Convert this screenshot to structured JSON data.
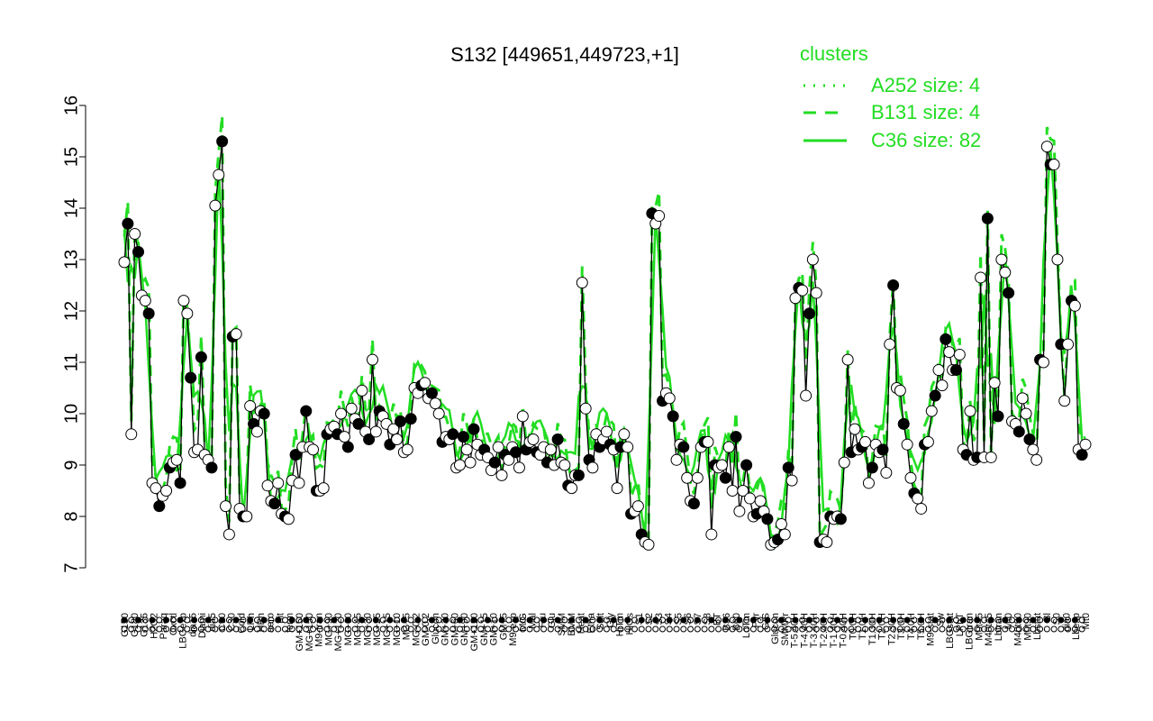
{
  "colors": {
    "cluster": "#22dd22",
    "series": "#000000",
    "background": "#ffffff"
  },
  "chart_data": {
    "type": "line",
    "title": "S132 [449651,449723,+1]",
    "xlabel": "",
    "ylabel": "",
    "ylim": [
      7,
      16
    ],
    "yticks": [
      7,
      8,
      9,
      10,
      11,
      12,
      13,
      14,
      15,
      16
    ],
    "grid": false,
    "legend": {
      "title": "clusters",
      "placement": "top-right",
      "entries": [
        {
          "label": "A252 size: 4",
          "style": "dotted"
        },
        {
          "label": "B131 size: 4",
          "style": "dashed"
        },
        {
          "label": "C36 size: 82",
          "style": "solid"
        }
      ]
    },
    "xtick_labels": [
      "G150",
      "G180",
      "G135",
      "H2O2",
      "Paraq",
      "Oxctl",
      "LBGexp",
      "dia15",
      "Diami",
      "dia5",
      "C90",
      "C30",
      "Cold",
      "LPh",
      "HPh",
      "aero",
      "nit",
      "ferm",
      "GM+150",
      "MG+150",
      "M9-tran",
      "MG+90",
      "MG+120",
      "MG+60",
      "MG+45",
      "MG+30",
      "MG+25",
      "MG+15",
      "MG+10",
      "MG+5",
      "MG-0.2",
      "GM-0.2",
      "Glucon",
      "GM+30",
      "GM+60",
      "GM+90",
      "GM+120",
      "GM+15",
      "GM+10",
      "GM+5",
      "M9-exp",
      "M/G",
      "Mal",
      "Fru",
      "Glu",
      "SMM",
      "BMM",
      "Heat",
      "Etha",
      "Salt",
      "Gly",
      "HiTm",
      "HiOs",
      "S1",
      "S2",
      "S3",
      "S4",
      "S5",
      "S6",
      "S7",
      "S8",
      "BT",
      "B36",
      "B60",
      "LoTm",
      "Pyr",
      "G/S",
      "Glucon",
      "SMMPr",
      "T-5.40H",
      "T-4.40H",
      "T-3.40H",
      "T-2.40H",
      "T-1.40H",
      "T-0.40H",
      "T0.0H",
      "T1.0H",
      "T1.30H",
      "T2.0H",
      "T2.30H",
      "T3.0H",
      "T4.0H",
      "T5.0H",
      "M9-stat",
      "Sw",
      "LBGstat",
      "LPhT",
      "LBGtran",
      "M0t45",
      "M40t45",
      "Lbtran",
      "Mt0",
      "M40t90",
      "M0t90",
      "Lbstat",
      "Bl",
      "S0",
      "dia0",
      "Lbexp",
      "Mt0"
    ],
    "series": [
      {
        "values": [
          12.95,
          13.7,
          9.6,
          13.5,
          13.15,
          12.3,
          12.2,
          11.95,
          8.65,
          8.55,
          8.2,
          8.4,
          8.5,
          8.95,
          9.05,
          9.1,
          8.65,
          12.2,
          11.95,
          10.7,
          9.25,
          9.3,
          11.1,
          9.2,
          9.1,
          8.95,
          14.05,
          14.65,
          15.3,
          8.2,
          7.65,
          11.5,
          11.55,
          8.15,
          8.0,
          8.0,
          10.15,
          9.8,
          9.65,
          10.05,
          10.0,
          8.6,
          8.3,
          8.25,
          8.65,
          8.05,
          8.0,
          7.95,
          8.7,
          9.2,
          8.65,
          9.35,
          10.05,
          9.35,
          9.3,
          8.5,
          8.5,
          8.55,
          9.6,
          9.7,
          9.75,
          9.6,
          10.0,
          9.55,
          9.35,
          10.1,
          9.9,
          9.8,
          10.45,
          9.65,
          9.5,
          11.05,
          9.65,
          10.05,
          9.95,
          9.8,
          9.4,
          9.7,
          9.5,
          9.85,
          9.25,
          9.3,
          9.9,
          10.5,
          10.4,
          10.55,
          10.6,
          10.3,
          10.4,
          10.2,
          10.0,
          9.45,
          9.55,
          9.5,
          9.6,
          8.95,
          9.0,
          9.55,
          9.3,
          9.05,
          9.7,
          9.4,
          9.2,
          9.3,
          9.15,
          8.9,
          9.05,
          9.35,
          8.8,
          9.2,
          9.1,
          9.35,
          9.25,
          8.95,
          9.95,
          9.3,
          9.45,
          9.5,
          9.25,
          9.2,
          9.35,
          9.05,
          9.3,
          9.0,
          9.5,
          9.05,
          9.0,
          8.6,
          8.55,
          8.8,
          8.8,
          12.55,
          10.1,
          9.1,
          8.95,
          9.6,
          9.35,
          9.5,
          9.65,
          9.4,
          9.3,
          8.55,
          9.35,
          9.6,
          9.35,
          8.05,
          8.1,
          8.2,
          7.65,
          7.5,
          7.45,
          13.9,
          13.7,
          13.85,
          10.25,
          10.4,
          10.3,
          9.95,
          9.1,
          9.4,
          9.35,
          8.75,
          8.3,
          8.25,
          8.75,
          9.35,
          9.45,
          9.45,
          7.65,
          9.0,
          8.95,
          9.0,
          8.75,
          9.35,
          8.5,
          9.55,
          8.1,
          8.5,
          9.0,
          8.35,
          8.0,
          8.05,
          8.3,
          8.1,
          7.95,
          7.45,
          7.5,
          7.55,
          7.85,
          7.65,
          8.95,
          8.7,
          12.25,
          12.45,
          12.4,
          10.35,
          11.95,
          13.0,
          12.35,
          7.5,
          7.55,
          7.5,
          8.0,
          7.95,
          8.0,
          7.95,
          9.05,
          11.05,
          9.25,
          9.7,
          9.3,
          9.35,
          9.45,
          8.65,
          8.95,
          9.4,
          9.25,
          9.3,
          8.85,
          11.35,
          12.5,
          10.5,
          10.45,
          9.8,
          9.4,
          8.75,
          8.45,
          8.35,
          8.15,
          9.4,
          9.45,
          10.05,
          10.35,
          10.85,
          10.55,
          11.45,
          11.2,
          10.85,
          10.85,
          11.15,
          9.3,
          9.2,
          10.05,
          9.1,
          9.15,
          12.65,
          9.15,
          13.8,
          9.15,
          10.6,
          9.95,
          13.0,
          12.75,
          12.35,
          9.85,
          9.8,
          9.65,
          10.3,
          10.0,
          9.5,
          9.3,
          9.1,
          11.05,
          11.0,
          15.2,
          14.85,
          14.85,
          13.0,
          11.35,
          10.25,
          11.35,
          12.2,
          12.1,
          9.3,
          9.2,
          9.4
        ]
      }
    ]
  }
}
